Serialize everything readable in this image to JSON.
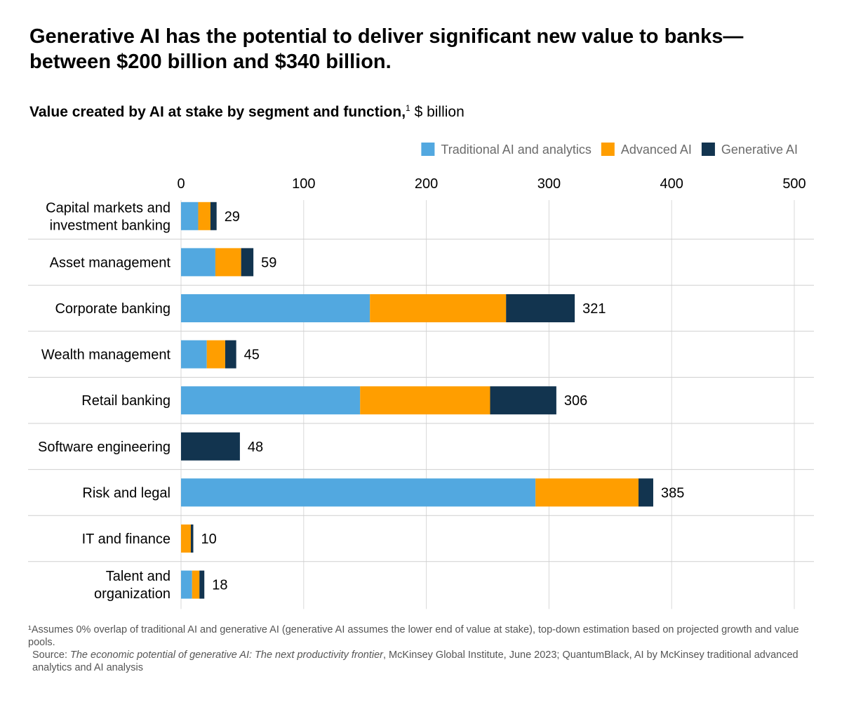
{
  "headline": "Generative AI has the potential to deliver significant new value to banks—between $200 billion and $340 billion.",
  "subtitle": {
    "bold": "Value created by AI at stake by segment and function,",
    "sup": "1",
    "unit": "$ billion"
  },
  "chart_data": {
    "type": "bar",
    "orientation": "horizontal",
    "stacked": true,
    "xlim": [
      0,
      500
    ],
    "xticks": [
      "0",
      "100",
      "200",
      "300",
      "400",
      "500"
    ],
    "grid": true,
    "legend_position": "top-right",
    "categories": [
      [
        "Capital markets and",
        "investment banking"
      ],
      [
        "Asset management"
      ],
      [
        "Corporate banking"
      ],
      [
        "Wealth management"
      ],
      [
        "Retail banking"
      ],
      [
        "Software engineering"
      ],
      [
        "Risk and legal"
      ],
      [
        "IT and finance"
      ],
      [
        "Talent and",
        "organization"
      ]
    ],
    "series": [
      {
        "name": "Traditional AI and analytics",
        "color": "#52A8E0",
        "values": [
          14,
          28,
          154,
          21,
          146,
          0,
          289,
          0,
          9
        ]
      },
      {
        "name": "Advanced AI",
        "color": "#FF9E00",
        "values": [
          10,
          21,
          111,
          15,
          106,
          0,
          84,
          8,
          6
        ]
      },
      {
        "name": "Generative  AI",
        "color": "#12344F",
        "values": [
          5,
          10,
          56,
          9,
          54,
          48,
          12,
          2,
          4
        ]
      }
    ],
    "totals": [
      "29",
      "59",
      "321",
      "45",
      "306",
      "48",
      "385",
      "10",
      "18"
    ]
  },
  "footnote": {
    "line1": "¹Assumes 0% overlap of traditional AI and generative AI (generative AI assumes the lower end of value at stake), top-down estimation based on projected growth and value pools.",
    "source_prefix": "Source: ",
    "source_title": "The economic potential of generative AI: The next productivity frontier",
    "source_rest": ", McKinsey Global Institute, June 2023; QuantumBlack, AI by McKinsey traditional advanced analytics and AI analysis"
  }
}
